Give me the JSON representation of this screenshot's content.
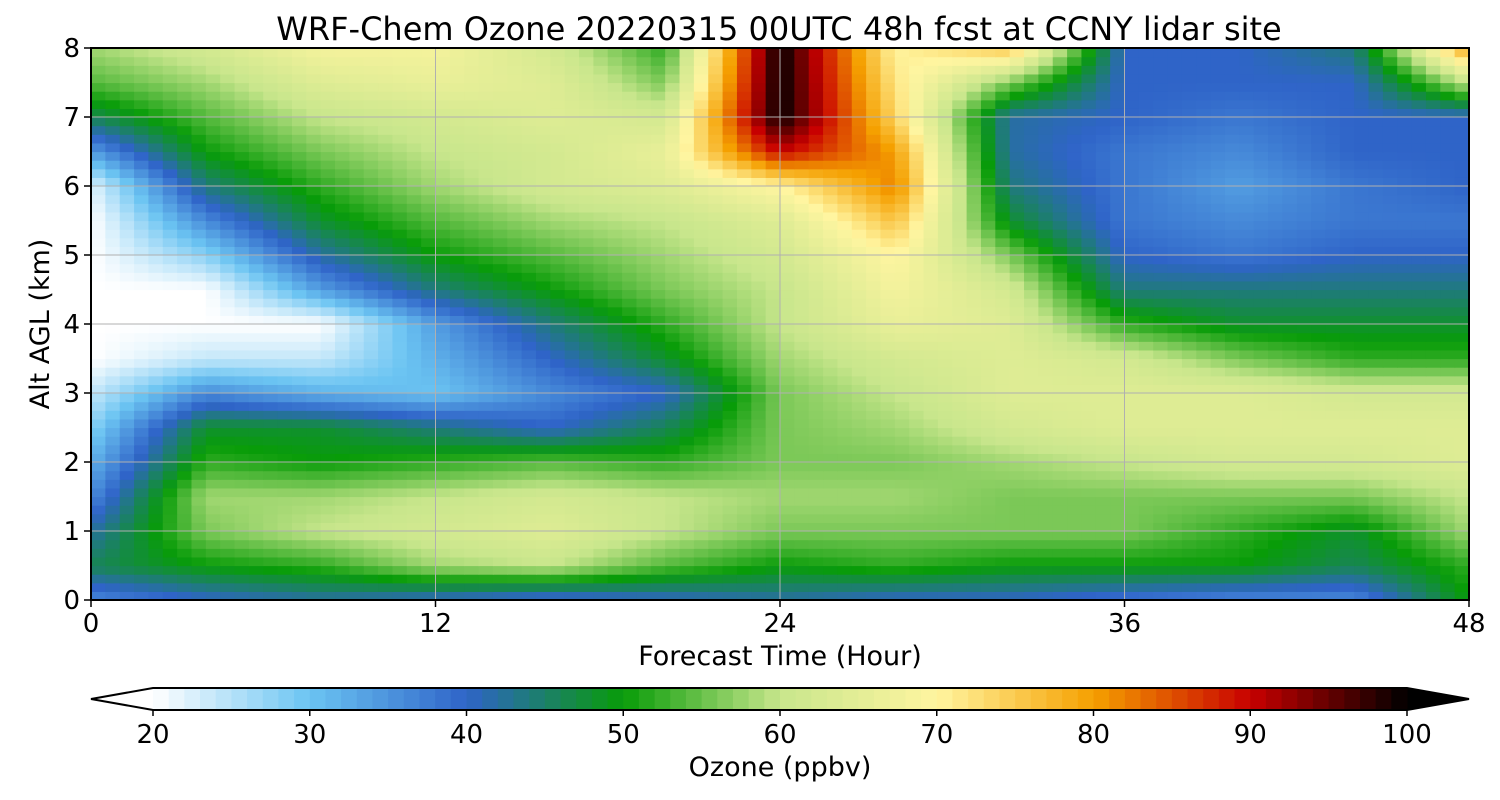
{
  "chart_data": {
    "type": "heatmap",
    "title": "WRF-Chem Ozone  20220315 00UTC 48h fcst at CCNY lidar site",
    "xlabel": "Forecast Time (Hour)",
    "ylabel": "Alt AGL (km)",
    "xlim": [
      0,
      48
    ],
    "ylim": [
      0,
      8
    ],
    "x_ticks": [
      0,
      12,
      24,
      36,
      48
    ],
    "y_ticks": [
      0,
      1,
      2,
      3,
      4,
      5,
      6,
      7,
      8
    ],
    "grid": true,
    "x": [
      0,
      4,
      8,
      12,
      16,
      20,
      24,
      28,
      32,
      36,
      40,
      44,
      48
    ],
    "y": [
      0,
      0.5,
      1,
      1.5,
      2,
      2.5,
      3,
      3.5,
      4,
      4.5,
      5,
      5.5,
      6,
      6.5,
      7,
      7.5,
      8
    ],
    "z": [
      [
        36,
        40,
        42,
        40,
        38,
        40,
        42,
        40,
        40,
        38,
        36,
        36,
        50
      ],
      [
        46,
        50,
        52,
        58,
        60,
        54,
        50,
        52,
        50,
        50,
        50,
        46,
        52
      ],
      [
        42,
        56,
        60,
        62,
        64,
        60,
        56,
        56,
        56,
        56,
        52,
        48,
        58
      ],
      [
        36,
        58,
        58,
        60,
        62,
        60,
        58,
        58,
        56,
        56,
        56,
        56,
        60
      ],
      [
        32,
        52,
        50,
        52,
        54,
        52,
        56,
        56,
        58,
        60,
        62,
        62,
        64
      ],
      [
        28,
        48,
        48,
        44,
        40,
        46,
        56,
        58,
        62,
        64,
        64,
        64,
        64
      ],
      [
        24,
        36,
        32,
        30,
        36,
        40,
        56,
        60,
        64,
        64,
        64,
        62,
        62
      ],
      [
        20,
        24,
        24,
        32,
        40,
        48,
        58,
        62,
        64,
        62,
        56,
        52,
        52
      ],
      [
        20,
        20,
        20,
        34,
        44,
        52,
        60,
        66,
        64,
        52,
        48,
        48,
        48
      ],
      [
        20,
        20,
        34,
        44,
        50,
        56,
        60,
        68,
        62,
        44,
        44,
        44,
        44
      ],
      [
        20,
        28,
        42,
        50,
        54,
        58,
        62,
        70,
        56,
        40,
        38,
        40,
        40
      ],
      [
        20,
        36,
        48,
        54,
        58,
        60,
        64,
        76,
        48,
        38,
        36,
        38,
        38
      ],
      [
        22,
        44,
        52,
        58,
        62,
        64,
        70,
        82,
        44,
        38,
        34,
        38,
        40
      ],
      [
        34,
        50,
        56,
        60,
        62,
        66,
        90,
        80,
        42,
        38,
        36,
        40,
        40
      ],
      [
        46,
        54,
        60,
        62,
        64,
        62,
        100,
        74,
        42,
        40,
        38,
        40,
        40
      ],
      [
        54,
        58,
        64,
        66,
        64,
        56,
        100,
        72,
        56,
        40,
        40,
        40,
        60
      ],
      [
        58,
        62,
        68,
        68,
        62,
        52,
        100,
        70,
        76,
        40,
        40,
        44,
        80
      ]
    ],
    "colorbar": {
      "label": "Ozone  (ppbv)",
      "min": 20,
      "max": 100,
      "ticks": [
        20,
        30,
        40,
        50,
        60,
        70,
        80,
        90,
        100
      ],
      "extend": "both",
      "colors": [
        "#ffffff",
        "#6bc4f2",
        "#2f64c8",
        "#089c08",
        "#c8e68c",
        "#fff5a0",
        "#f5a000",
        "#c80000",
        "#000000"
      ]
    }
  }
}
